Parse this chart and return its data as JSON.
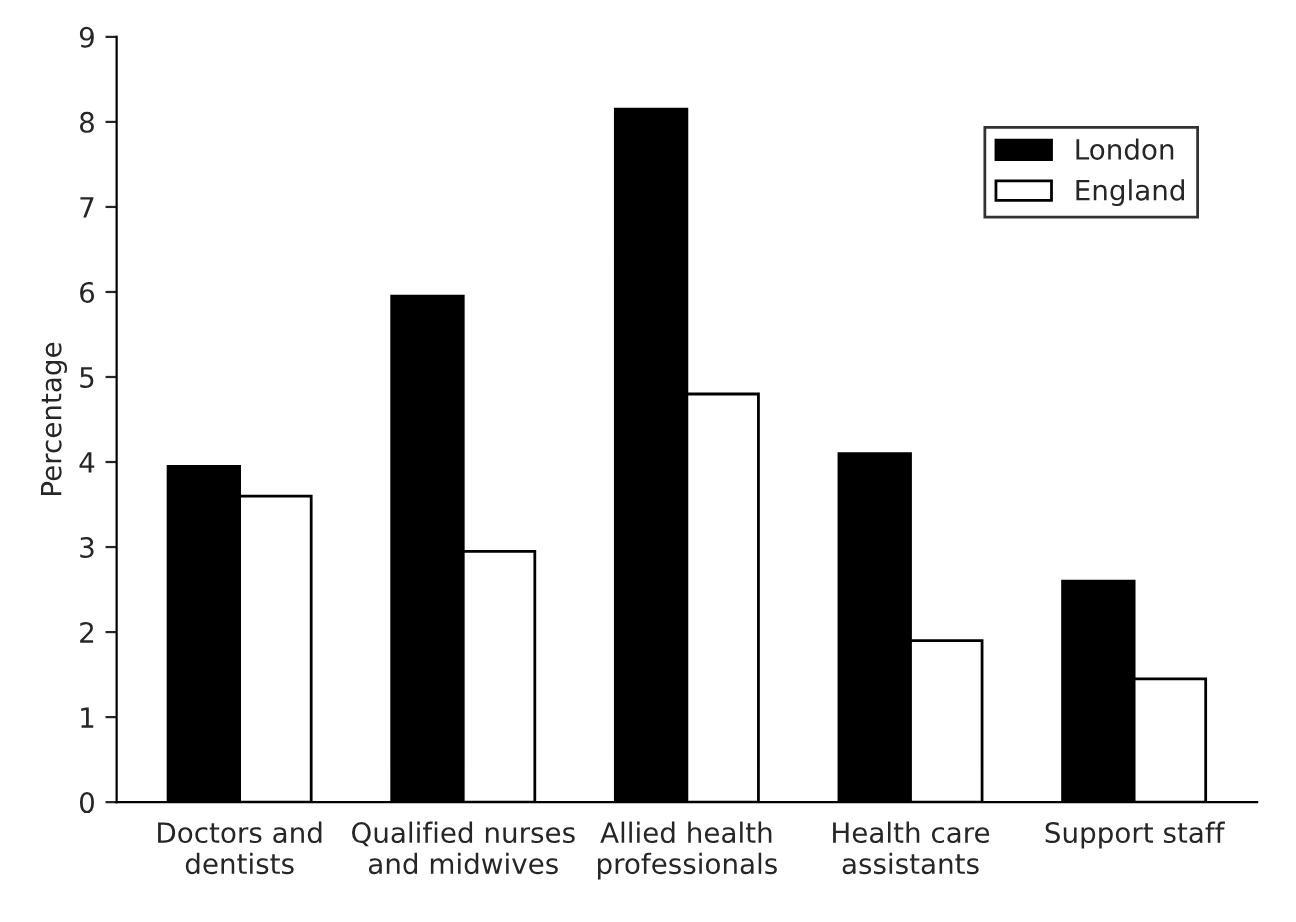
{
  "chart_data": {
    "type": "bar",
    "ylabel": "Percentage",
    "categories": [
      "Doctors and\ndentists",
      "Qualified nurses\nand midwives",
      "Allied health\nprofessionals",
      "Health care\nassistants",
      "Support staff"
    ],
    "series": [
      {
        "name": "London",
        "color": "#000000",
        "values": [
          3.95,
          5.95,
          8.15,
          4.1,
          2.6
        ]
      },
      {
        "name": "England",
        "color": "#ffffff",
        "values": [
          3.6,
          2.95,
          4.8,
          1.9,
          1.45
        ]
      }
    ],
    "ylim": [
      0,
      9
    ],
    "yticks": [
      0,
      1,
      2,
      3,
      4,
      5,
      6,
      7,
      8,
      9
    ],
    "grid": false,
    "legend": "top right"
  }
}
